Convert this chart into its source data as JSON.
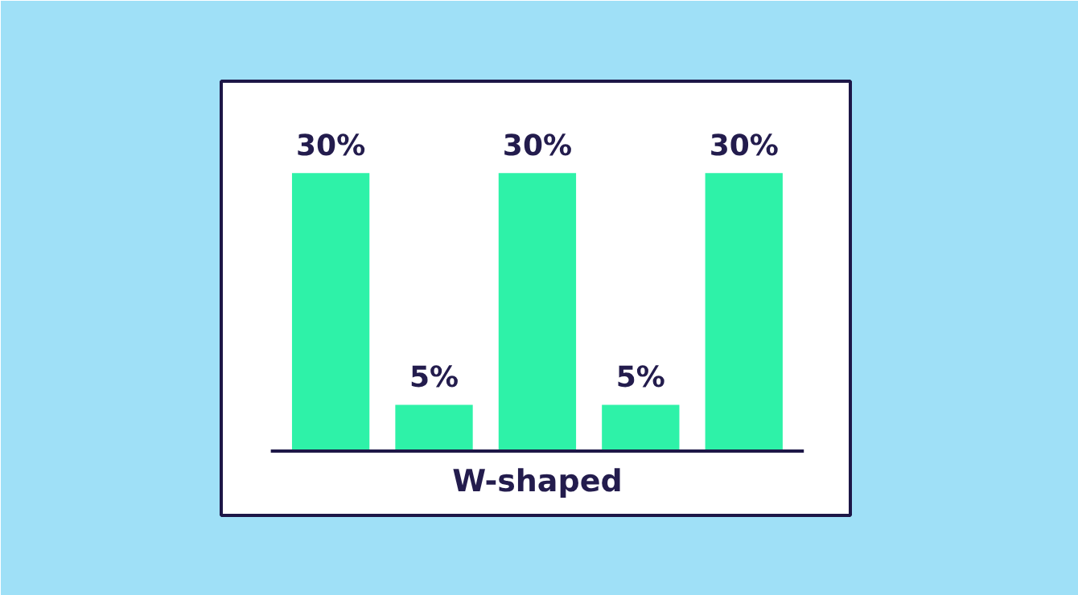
{
  "chart_data": {
    "type": "bar",
    "categories": [
      null,
      null,
      null,
      null,
      null
    ],
    "values": [
      30,
      5,
      30,
      5,
      30
    ],
    "value_labels": [
      "30%",
      "5%",
      "30%",
      "5%",
      "30%"
    ],
    "color": "#2ef2a8",
    "xlabel": "W-shaped",
    "grid": false
  }
}
